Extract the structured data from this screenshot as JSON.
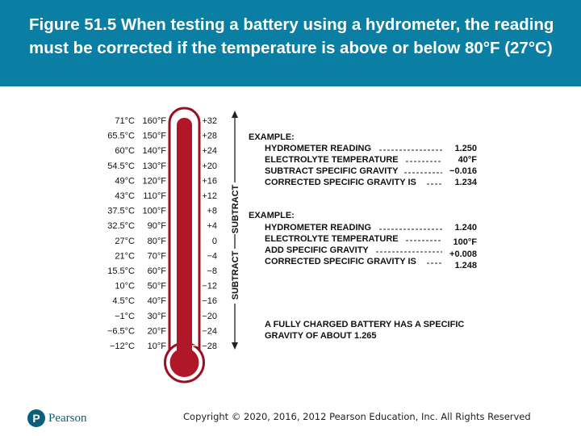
{
  "title": "Figure 51.5 When testing a battery using a hydrometer, the reading must be corrected if the temperature is above or below 80°F (27°C)",
  "thermometer": {
    "rows": [
      {
        "c": "71°C",
        "f": "160°F",
        "corr": "+32"
      },
      {
        "c": "65.5°C",
        "f": "150°F",
        "corr": "+28"
      },
      {
        "c": "60°C",
        "f": "140°F",
        "corr": "+24"
      },
      {
        "c": "54.5°C",
        "f": "130°F",
        "corr": "+20"
      },
      {
        "c": "49°C",
        "f": "120°F",
        "corr": "+16"
      },
      {
        "c": "43°C",
        "f": "110°F",
        "corr": "+12"
      },
      {
        "c": "37.5°C",
        "f": "100°F",
        "corr": "+8"
      },
      {
        "c": "32.5°C",
        "f": "90°F",
        "corr": "+4"
      },
      {
        "c": "27°C",
        "f": "80°F",
        "corr": "0"
      },
      {
        "c": "21°C",
        "f": "70°F",
        "corr": "−4"
      },
      {
        "c": "15.5°C",
        "f": "60°F",
        "corr": "−8"
      },
      {
        "c": "10°C",
        "f": "50°F",
        "corr": "−12"
      },
      {
        "c": "4.5°C",
        "f": "40°F",
        "corr": "−16"
      },
      {
        "c": "−1°C",
        "f": "30°F",
        "corr": "−20"
      },
      {
        "c": "−6.5°C",
        "f": "20°F",
        "corr": "−24"
      },
      {
        "c": "−12°C",
        "f": "10°F",
        "corr": "−28"
      }
    ],
    "subtract_label": "SUBTRACT",
    "fill_color": "#b0182a",
    "border_color": "#9b1020"
  },
  "example1": {
    "heading": "EXAMPLE:",
    "lines": [
      {
        "label": "HYDROMETER READING",
        "value": "1.250"
      },
      {
        "label": "ELECTROLYTE TEMPERATURE",
        "value": "40°F"
      },
      {
        "label": "SUBTRACT SPECIFIC GRAVITY",
        "value": "−0.016"
      },
      {
        "label": "CORRECTED SPECIFIC GRAVITY IS",
        "value": "1.234"
      }
    ]
  },
  "example2": {
    "heading": "EXAMPLE:",
    "lines": [
      {
        "label": "HYDROMETER READING",
        "value": "1.240"
      },
      {
        "label": "ELECTROLYTE TEMPERATURE",
        "value": "100°F"
      },
      {
        "label": "ADD SPECIFIC GRAVITY",
        "value": "+0.008"
      },
      {
        "label": "CORRECTED SPECIFIC GRAVITY IS",
        "value": "1.248"
      }
    ]
  },
  "note": {
    "line1": "A FULLY CHARGED BATTERY HAS A SPECIFIC",
    "line2": "GRAVITY OF ABOUT 1.265"
  },
  "footer": {
    "logo_letter": "P",
    "logo_text": "Pearson",
    "copyright": "Copyright © 2020, 2016, 2012 Pearson Education, Inc. All Rights Reserved"
  },
  "colors": {
    "title_bar": "#0b7fa3",
    "title_text": "#ffffff",
    "brand": "#0a5f7d"
  }
}
